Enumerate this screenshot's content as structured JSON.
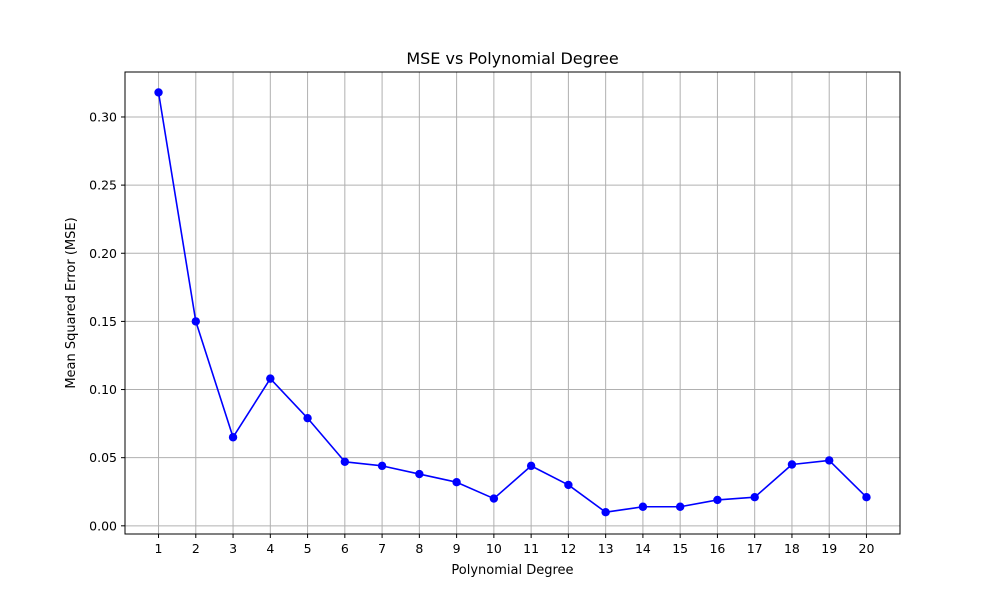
{
  "chart_data": {
    "type": "line",
    "title": "MSE vs Polynomial Degree",
    "xlabel": "Polynomial Degree",
    "ylabel": "Mean Squared Error (MSE)",
    "x": [
      1,
      2,
      3,
      4,
      5,
      6,
      7,
      8,
      9,
      10,
      11,
      12,
      13,
      14,
      15,
      16,
      17,
      18,
      19,
      20
    ],
    "x_tick_labels": [
      "1",
      "2",
      "3",
      "4",
      "5",
      "6",
      "7",
      "8",
      "9",
      "10",
      "11",
      "12",
      "13",
      "14",
      "15",
      "16",
      "17",
      "18",
      "19",
      "20"
    ],
    "series": [
      {
        "values": [
          0.318,
          0.15,
          0.065,
          0.108,
          0.079,
          0.047,
          0.044,
          0.038,
          0.032,
          0.02,
          0.044,
          0.03,
          0.01,
          0.014,
          0.014,
          0.019,
          0.021,
          0.045,
          0.048,
          0.021
        ],
        "color": "#0000ff",
        "marker": "circle"
      }
    ],
    "xlim": [
      0.1,
      20.9
    ],
    "ylim": [
      -0.006,
      0.333
    ],
    "y_ticks": [
      0.0,
      0.05,
      0.1,
      0.15,
      0.2,
      0.25,
      0.3
    ],
    "y_tick_labels": [
      "0.00",
      "0.05",
      "0.10",
      "0.15",
      "0.20",
      "0.25",
      "0.30"
    ],
    "grid": true,
    "grid_color": "#b0b0b0",
    "axes_color": "#000000"
  }
}
